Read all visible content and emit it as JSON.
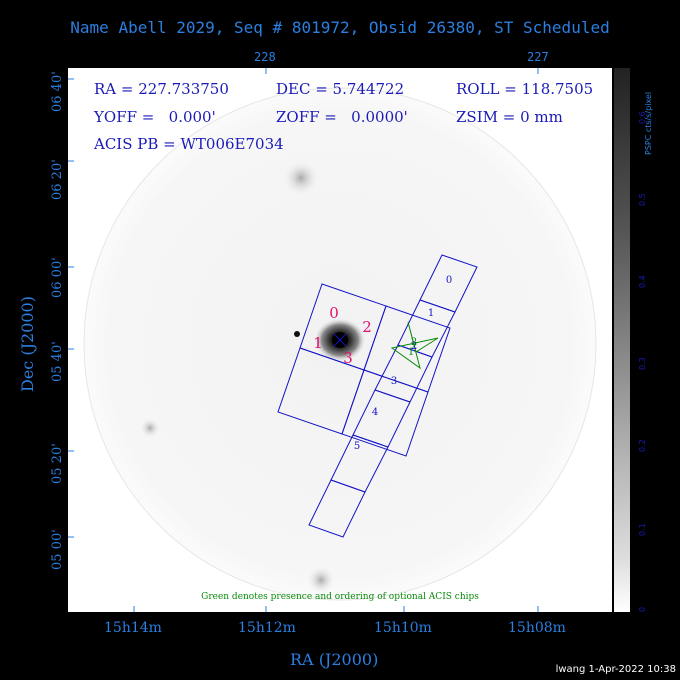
{
  "title": "Name Abell 2029, Seq # 801972, Obsid 26380, ST Scheduled",
  "top_ticks": [
    "228",
    "227"
  ],
  "info": {
    "ra": "RA = 227.733750",
    "dec": "DEC = 5.744722",
    "roll": "ROLL = 118.7505",
    "yoff": "YOFF =   0.000'",
    "zoff": "ZOFF =   0.0000'",
    "zsim": "ZSIM = 0 mm",
    "acis_pb": "ACIS PB = WT006E7034"
  },
  "y_ticks": [
    "06 40'",
    "06 20'",
    "06 00'",
    "05 40'",
    "05 20'",
    "05 00'"
  ],
  "y_label": "Dec (J2000)",
  "x_ticks": [
    "15h14m",
    "15h12m",
    "15h10m",
    "15h08m"
  ],
  "x_label": "RA (J2000)",
  "colorbar": {
    "title": "PSPC cts/s/pixel",
    "ticks": [
      "0",
      "0.1",
      "0.2",
      "0.3",
      "0.4",
      "0.5",
      "0.6"
    ]
  },
  "chips": {
    "i_array": [
      "0",
      "1",
      "2",
      "3"
    ],
    "s_array": [
      "0",
      "1",
      "2",
      "3",
      "4",
      "5"
    ],
    "optional": [
      "1",
      "2"
    ]
  },
  "note": "Green denotes presence and ordering of optional ACIS chips",
  "footer": "lwang  1-Apr-2022 10:38",
  "colors": {
    "axis": "#2a7fe0",
    "info_text": "#1a1ab8",
    "chip_outline": "#1414c8",
    "i_array_label": "#e0106e",
    "optional": "#0a8a0a"
  }
}
